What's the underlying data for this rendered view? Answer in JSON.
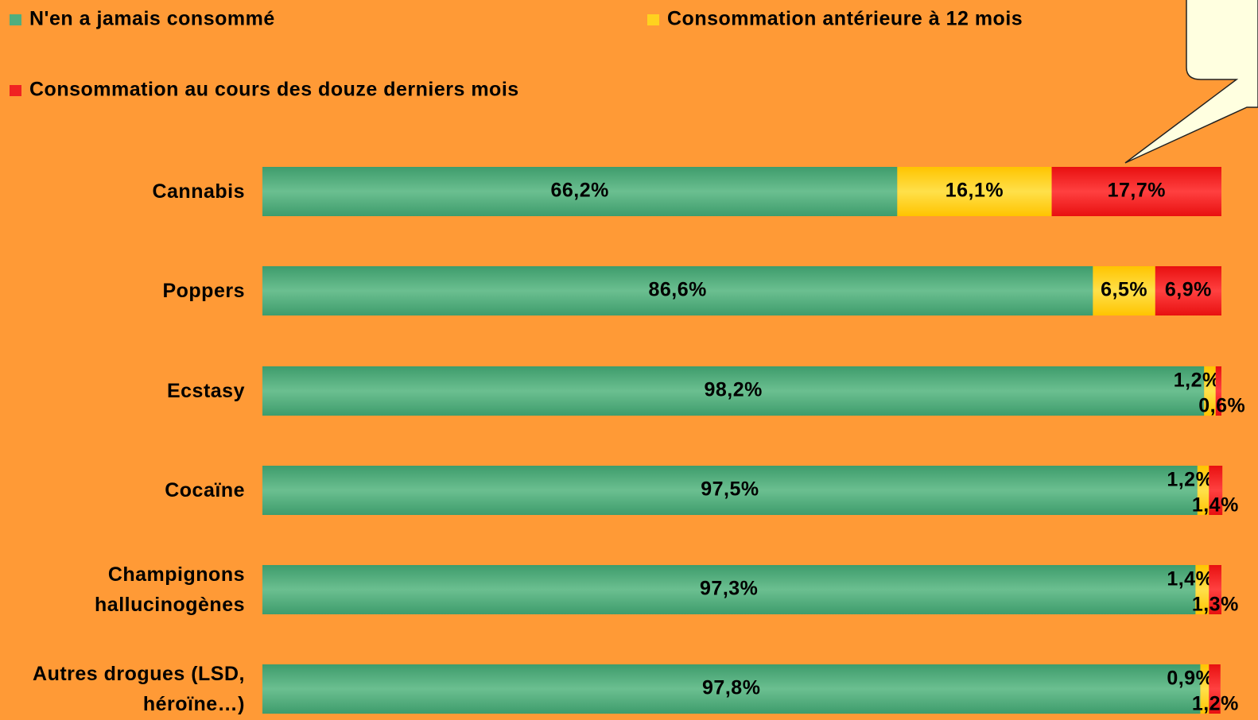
{
  "chart_data": {
    "type": "stacked_bar_horizontal",
    "categories": [
      "Cannabis",
      "Poppers",
      "Ecstasy",
      "Cocaïne",
      "Champignons hallucinogènes",
      "Autres drogues (LSD, héroïne…)"
    ],
    "xlim": [
      0,
      100
    ],
    "series": [
      {
        "name": "N'en a jamais consommé",
        "color": "#4fae7e",
        "values": [
          66.2,
          86.6,
          98.2,
          97.5,
          97.3,
          97.8
        ],
        "value_labels": [
          "66,2%",
          "86,6%",
          "98,2%",
          "97,5%",
          "97,3%",
          "97,8%"
        ]
      },
      {
        "name": "Consommation antérieure à 12 mois",
        "color": "#ffd21f",
        "values": [
          16.1,
          6.5,
          1.2,
          1.2,
          1.4,
          0.9
        ],
        "value_labels": [
          "16,1%",
          "6,5%",
          "1,2%",
          "1,2%",
          "1,4%",
          "0,9%"
        ]
      },
      {
        "name": "Consommation au cours des douze derniers mois",
        "color": "#f02222",
        "values": [
          17.7,
          6.9,
          0.6,
          1.4,
          1.3,
          1.2
        ],
        "value_labels": [
          "17,7%",
          "6,9%",
          "0,6%",
          "1,4%",
          "1,3%",
          "1,2%"
        ]
      }
    ]
  }
}
